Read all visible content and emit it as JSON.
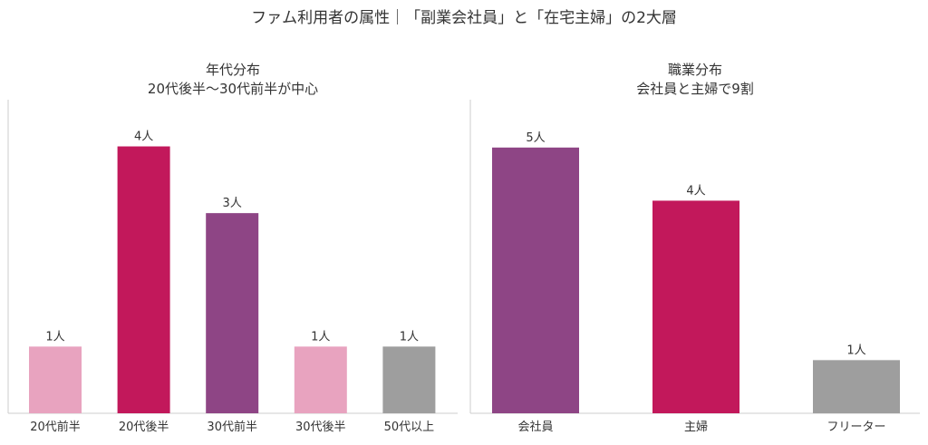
{
  "title": "ファム利用者の属性｜「副業会社員」と「在宅主婦」の2大層",
  "chart_data": [
    {
      "type": "bar",
      "title_lines": [
        "年代分布",
        "20代後半〜30代前半が中心"
      ],
      "categories": [
        "20代前半",
        "20代後半",
        "30代前半",
        "30代後半",
        "50代以上"
      ],
      "values": [
        1,
        4,
        3,
        1,
        1
      ],
      "value_labels": [
        "1人",
        "4人",
        "3人",
        "1人",
        "1人"
      ],
      "colors": [
        "#e8a3bf",
        "#c2185b",
        "#8e4585",
        "#e8a3bf",
        "#9e9e9e"
      ],
      "ylim": [
        0,
        4.7
      ]
    },
    {
      "type": "bar",
      "title_lines": [
        "職業分布",
        "会社員と主婦で9割"
      ],
      "categories": [
        "会社員",
        "主婦",
        "フリーター"
      ],
      "values": [
        5,
        4,
        1
      ],
      "value_labels": [
        "5人",
        "4人",
        "1人"
      ],
      "colors": [
        "#8e4585",
        "#c2185b",
        "#9e9e9e"
      ],
      "ylim": [
        0,
        5.9
      ]
    }
  ]
}
